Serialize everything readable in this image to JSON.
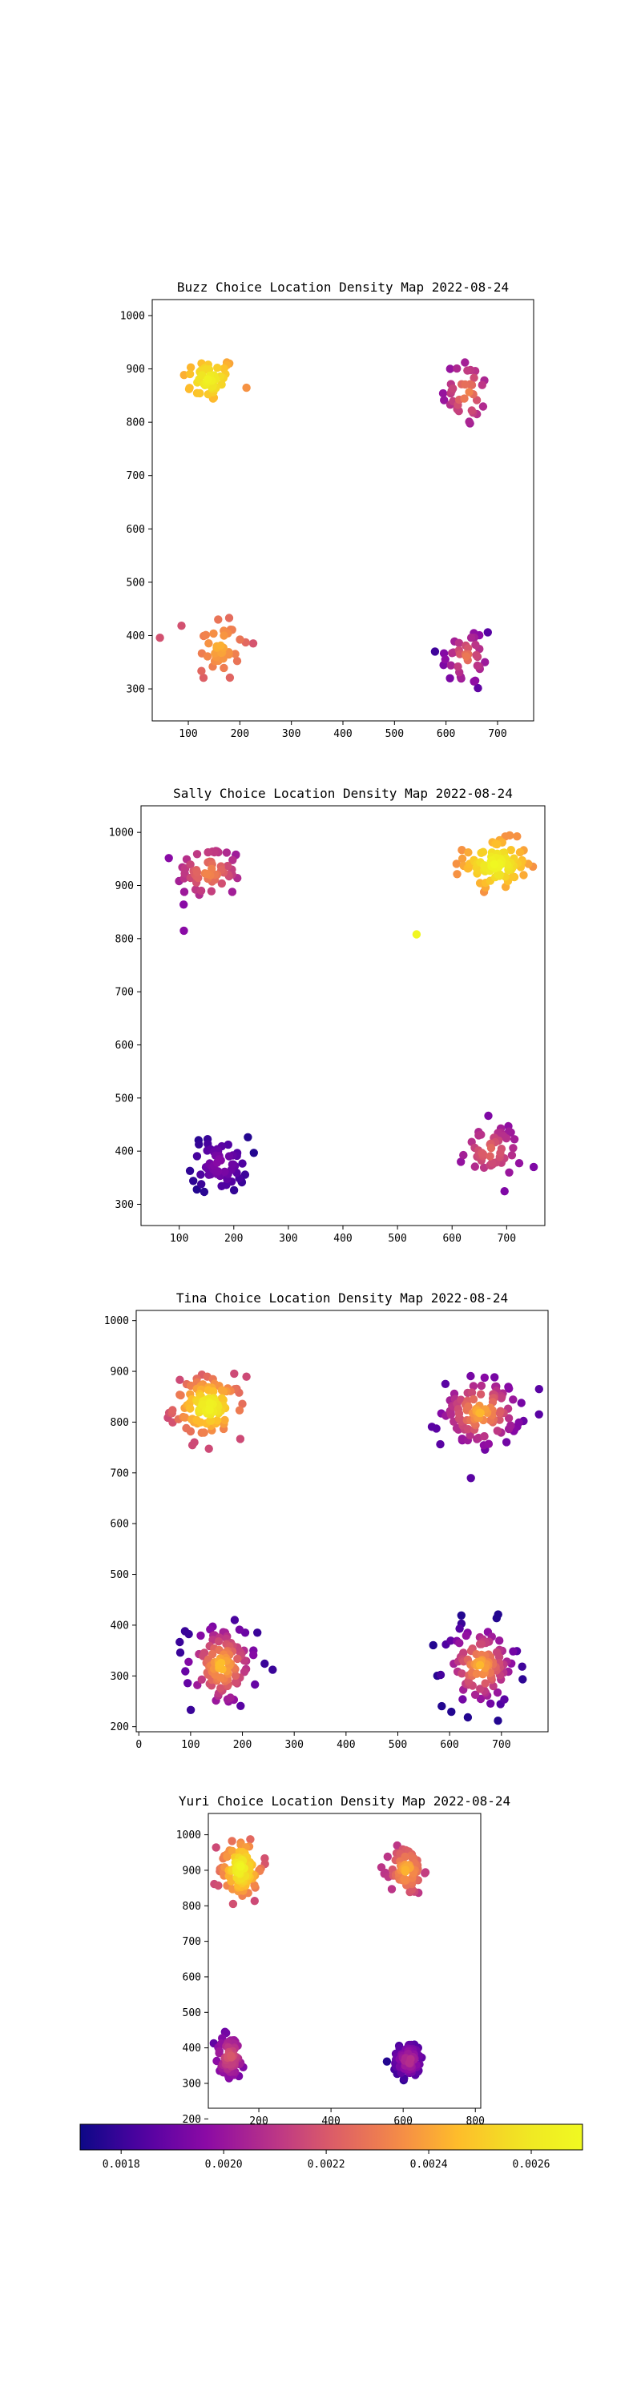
{
  "chart_data": [
    {
      "type": "scatter",
      "title": "Buzz Choice Location Density Map 2022-08-24",
      "xlabel": "",
      "ylabel": "",
      "xlim": [
        30,
        770
      ],
      "ylim": [
        240,
        1030
      ],
      "xticks": [
        100,
        200,
        300,
        400,
        500,
        600,
        700
      ],
      "yticks": [
        300,
        400,
        500,
        600,
        700,
        800,
        900,
        1000
      ],
      "clusters": [
        {
          "cx": 140,
          "cy": 880,
          "sx": 35,
          "sy": 28,
          "n": 45,
          "color_min": 0.00236,
          "color_max": 0.00266
        },
        {
          "cx": 640,
          "cy": 855,
          "sx": 32,
          "sy": 45,
          "n": 35,
          "color_min": 0.0019,
          "color_max": 0.00236
        },
        {
          "cx": 160,
          "cy": 380,
          "sx": 38,
          "sy": 45,
          "n": 40,
          "color_min": 0.00218,
          "color_max": 0.00244
        },
        {
          "cx": 640,
          "cy": 360,
          "sx": 38,
          "sy": 45,
          "n": 38,
          "color_min": 0.00176,
          "color_max": 0.0023
        }
      ]
    },
    {
      "type": "scatter",
      "title": "Sally Choice Location Density Map 2022-08-24",
      "xlabel": "",
      "ylabel": "",
      "xlim": [
        30,
        770
      ],
      "ylim": [
        260,
        1050
      ],
      "xticks": [
        100,
        200,
        300,
        400,
        500,
        600,
        700
      ],
      "yticks": [
        300,
        400,
        500,
        600,
        700,
        800,
        900,
        1000
      ],
      "clusters": [
        {
          "cx": 155,
          "cy": 925,
          "sx": 40,
          "sy": 35,
          "n": 60,
          "color_min": 0.00196,
          "color_max": 0.00236
        },
        {
          "cx": 680,
          "cy": 940,
          "sx": 38,
          "sy": 30,
          "n": 90,
          "color_min": 0.00236,
          "color_max": 0.0027
        },
        {
          "cx": 175,
          "cy": 375,
          "sx": 35,
          "sy": 35,
          "n": 60,
          "color_min": 0.00176,
          "color_max": 0.00198
        },
        {
          "cx": 670,
          "cy": 400,
          "sx": 38,
          "sy": 35,
          "n": 50,
          "color_min": 0.00194,
          "color_max": 0.00228
        }
      ],
      "points": [
        {
          "x": 535,
          "y": 808,
          "c": 0.00268
        }
      ]
    },
    {
      "type": "scatter",
      "title": "Tina Choice Location Density Map 2022-08-24",
      "xlabel": "",
      "ylabel": "",
      "xlim": [
        -5,
        790
      ],
      "ylim": [
        190,
        1020
      ],
      "xticks": [
        0,
        100,
        200,
        300,
        400,
        500,
        600,
        700
      ],
      "yticks": [
        200,
        300,
        400,
        500,
        600,
        700,
        800,
        900,
        1000
      ],
      "clusters": [
        {
          "cx": 135,
          "cy": 830,
          "sx": 45,
          "sy": 40,
          "n": 110,
          "color_min": 0.00216,
          "color_max": 0.0027
        },
        {
          "cx": 660,
          "cy": 820,
          "sx": 50,
          "sy": 45,
          "n": 110,
          "color_min": 0.00186,
          "color_max": 0.00246
        },
        {
          "cx": 160,
          "cy": 320,
          "sx": 45,
          "sy": 55,
          "n": 110,
          "color_min": 0.0018,
          "color_max": 0.0025
        },
        {
          "cx": 660,
          "cy": 320,
          "sx": 48,
          "sy": 55,
          "n": 110,
          "color_min": 0.00176,
          "color_max": 0.00246
        }
      ]
    },
    {
      "type": "scatter",
      "title": "Yuri Choice Location Density Map 2022-08-24",
      "xlabel": "",
      "ylabel": "",
      "xlim": [
        60,
        815
      ],
      "ylim": [
        230,
        1060
      ],
      "xticks": [
        200,
        400,
        600,
        800
      ],
      "yticks": [
        200,
        300,
        400,
        500,
        600,
        700,
        800,
        900,
        1000
      ],
      "clusters": [
        {
          "cx": 150,
          "cy": 905,
          "sx": 40,
          "sy": 60,
          "n": 90,
          "color_min": 0.00216,
          "color_max": 0.0027
        },
        {
          "cx": 610,
          "cy": 900,
          "sx": 30,
          "sy": 45,
          "n": 70,
          "color_min": 0.0021,
          "color_max": 0.00246
        },
        {
          "cx": 120,
          "cy": 375,
          "sx": 30,
          "sy": 45,
          "n": 70,
          "color_min": 0.00186,
          "color_max": 0.00222
        },
        {
          "cx": 615,
          "cy": 365,
          "sx": 30,
          "sy": 35,
          "n": 65,
          "color_min": 0.00176,
          "color_max": 0.00212
        }
      ]
    }
  ],
  "colorbar": {
    "colormap": "plasma",
    "range": [
      0.00172,
      0.0027
    ],
    "ticks": [
      0.0018,
      0.002,
      0.0022,
      0.0024,
      0.0026
    ],
    "tick_labels": [
      "0.0018",
      "0.0020",
      "0.0022",
      "0.0024",
      "0.0026"
    ]
  }
}
